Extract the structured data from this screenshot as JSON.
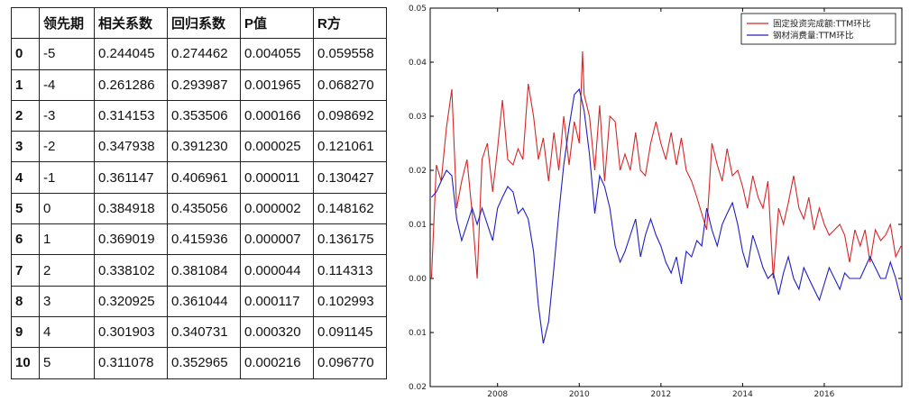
{
  "table": {
    "headers": [
      "",
      "领先期",
      "相关系数",
      "回归系数",
      "P值",
      "R方"
    ],
    "rows": [
      [
        "0",
        "-5",
        "0.244045",
        "0.274462",
        "0.004055",
        "0.059558"
      ],
      [
        "1",
        "-4",
        "0.261286",
        "0.293987",
        "0.001965",
        "0.068270"
      ],
      [
        "2",
        "-3",
        "0.314153",
        "0.353506",
        "0.000166",
        "0.098692"
      ],
      [
        "3",
        "-2",
        "0.347938",
        "0.391230",
        "0.000025",
        "0.121061"
      ],
      [
        "4",
        "-1",
        "0.361147",
        "0.406961",
        "0.000011",
        "0.130427"
      ],
      [
        "5",
        "0",
        "0.384918",
        "0.435056",
        "0.000002",
        "0.148162"
      ],
      [
        "6",
        "1",
        "0.369019",
        "0.415936",
        "0.000007",
        "0.136175"
      ],
      [
        "7",
        "2",
        "0.338102",
        "0.381084",
        "0.000044",
        "0.114313"
      ],
      [
        "8",
        "3",
        "0.320925",
        "0.361044",
        "0.000117",
        "0.102993"
      ],
      [
        "9",
        "4",
        "0.301903",
        "0.340731",
        "0.000320",
        "0.091145"
      ],
      [
        "10",
        "5",
        "0.311078",
        "0.352965",
        "0.000216",
        "0.096770"
      ]
    ]
  },
  "chart_data": {
    "type": "line",
    "title": "",
    "xlabel": "",
    "ylabel": "",
    "xlim": [
      2006.35,
      2017.9
    ],
    "ylim": [
      -0.02,
      0.05
    ],
    "y_ticks": [
      0.05,
      0.04,
      0.03,
      0.02,
      0.01,
      0.0,
      -0.01,
      -0.02
    ],
    "y_tick_labels": [
      "0.05",
      "0.04",
      "0.03",
      "0.02",
      "0.01",
      "0.00",
      "0.01",
      "0.02"
    ],
    "x_ticks": [
      2008,
      2010,
      2012,
      2014,
      2016
    ],
    "x_tick_labels": [
      "2008",
      "2010",
      "2012",
      "2014",
      "2016"
    ],
    "legend_position": "top-right",
    "grid": false,
    "series": [
      {
        "name": "固定投资完成额:TTM环比",
        "color": "#d62728",
        "points": [
          [
            2006.38,
            0.0
          ],
          [
            2006.5,
            0.021
          ],
          [
            2006.62,
            0.018
          ],
          [
            2006.75,
            0.028
          ],
          [
            2006.88,
            0.035
          ],
          [
            2007.0,
            0.013
          ],
          [
            2007.12,
            0.018
          ],
          [
            2007.25,
            0.022
          ],
          [
            2007.38,
            0.012
          ],
          [
            2007.5,
            0.0
          ],
          [
            2007.62,
            0.022
          ],
          [
            2007.75,
            0.025
          ],
          [
            2007.88,
            0.016
          ],
          [
            2008.0,
            0.024
          ],
          [
            2008.12,
            0.033
          ],
          [
            2008.25,
            0.022
          ],
          [
            2008.38,
            0.021
          ],
          [
            2008.5,
            0.024
          ],
          [
            2008.62,
            0.022
          ],
          [
            2008.75,
            0.036
          ],
          [
            2008.88,
            0.03
          ],
          [
            2009.0,
            0.022
          ],
          [
            2009.12,
            0.026
          ],
          [
            2009.25,
            0.018
          ],
          [
            2009.38,
            0.027
          ],
          [
            2009.5,
            0.02
          ],
          [
            2009.62,
            0.03
          ],
          [
            2009.75,
            0.021
          ],
          [
            2009.88,
            0.029
          ],
          [
            2010.0,
            0.025
          ],
          [
            2010.08,
            0.042
          ],
          [
            2010.12,
            0.034
          ],
          [
            2010.25,
            0.03
          ],
          [
            2010.38,
            0.02
          ],
          [
            2010.5,
            0.032
          ],
          [
            2010.62,
            0.018
          ],
          [
            2010.75,
            0.03
          ],
          [
            2010.88,
            0.029
          ],
          [
            2011.0,
            0.02
          ],
          [
            2011.12,
            0.023
          ],
          [
            2011.25,
            0.02
          ],
          [
            2011.38,
            0.027
          ],
          [
            2011.5,
            0.02
          ],
          [
            2011.62,
            0.019
          ],
          [
            2011.75,
            0.025
          ],
          [
            2011.88,
            0.029
          ],
          [
            2012.0,
            0.025
          ],
          [
            2012.12,
            0.022
          ],
          [
            2012.25,
            0.027
          ],
          [
            2012.38,
            0.021
          ],
          [
            2012.5,
            0.026
          ],
          [
            2012.62,
            0.02
          ],
          [
            2012.75,
            0.018
          ],
          [
            2012.88,
            0.015
          ],
          [
            2013.0,
            0.012
          ],
          [
            2013.12,
            0.009
          ],
          [
            2013.25,
            0.025
          ],
          [
            2013.38,
            0.021
          ],
          [
            2013.5,
            0.018
          ],
          [
            2013.62,
            0.024
          ],
          [
            2013.75,
            0.019
          ],
          [
            2013.88,
            0.02
          ],
          [
            2014.0,
            0.017
          ],
          [
            2014.12,
            0.013
          ],
          [
            2014.25,
            0.019
          ],
          [
            2014.38,
            0.015
          ],
          [
            2014.5,
            0.013
          ],
          [
            2014.62,
            0.018
          ],
          [
            2014.75,
            0.0
          ],
          [
            2014.88,
            0.013
          ],
          [
            2015.0,
            0.01
          ],
          [
            2015.12,
            0.014
          ],
          [
            2015.25,
            0.019
          ],
          [
            2015.38,
            0.013
          ],
          [
            2015.5,
            0.011
          ],
          [
            2015.62,
            0.015
          ],
          [
            2015.75,
            0.009
          ],
          [
            2015.88,
            0.013
          ],
          [
            2016.0,
            0.01
          ],
          [
            2016.12,
            0.008
          ],
          [
            2016.25,
            0.009
          ],
          [
            2016.38,
            0.01
          ],
          [
            2016.5,
            0.008
          ],
          [
            2016.62,
            0.003
          ],
          [
            2016.75,
            0.009
          ],
          [
            2016.88,
            0.006
          ],
          [
            2017.0,
            0.009
          ],
          [
            2017.12,
            0.003
          ],
          [
            2017.25,
            0.009
          ],
          [
            2017.38,
            0.007
          ],
          [
            2017.5,
            0.008
          ],
          [
            2017.62,
            0.01
          ],
          [
            2017.75,
            0.004
          ],
          [
            2017.88,
            0.006
          ]
        ]
      },
      {
        "name": "钢材消费量:TTM环比",
        "color": "#1f1fbf",
        "points": [
          [
            2006.38,
            0.015
          ],
          [
            2006.5,
            0.016
          ],
          [
            2006.62,
            0.018
          ],
          [
            2006.75,
            0.02
          ],
          [
            2006.88,
            0.019
          ],
          [
            2007.0,
            0.011
          ],
          [
            2007.12,
            0.007
          ],
          [
            2007.25,
            0.01
          ],
          [
            2007.38,
            0.013
          ],
          [
            2007.5,
            0.01
          ],
          [
            2007.62,
            0.013
          ],
          [
            2007.75,
            0.01
          ],
          [
            2007.88,
            0.007
          ],
          [
            2008.0,
            0.013
          ],
          [
            2008.12,
            0.015
          ],
          [
            2008.25,
            0.017
          ],
          [
            2008.38,
            0.016
          ],
          [
            2008.5,
            0.012
          ],
          [
            2008.62,
            0.013
          ],
          [
            2008.75,
            0.011
          ],
          [
            2008.88,
            0.005
          ],
          [
            2009.0,
            -0.005
          ],
          [
            2009.12,
            -0.012
          ],
          [
            2009.25,
            -0.008
          ],
          [
            2009.38,
            0.002
          ],
          [
            2009.5,
            0.012
          ],
          [
            2009.62,
            0.021
          ],
          [
            2009.75,
            0.028
          ],
          [
            2009.88,
            0.034
          ],
          [
            2010.0,
            0.035
          ],
          [
            2010.12,
            0.031
          ],
          [
            2010.25,
            0.023
          ],
          [
            2010.38,
            0.012
          ],
          [
            2010.5,
            0.019
          ],
          [
            2010.62,
            0.017
          ],
          [
            2010.75,
            0.013
          ],
          [
            2010.88,
            0.006
          ],
          [
            2011.0,
            0.003
          ],
          [
            2011.12,
            0.005
          ],
          [
            2011.25,
            0.008
          ],
          [
            2011.38,
            0.011
          ],
          [
            2011.5,
            0.004
          ],
          [
            2011.62,
            0.008
          ],
          [
            2011.75,
            0.011
          ],
          [
            2011.88,
            0.008
          ],
          [
            2012.0,
            0.006
          ],
          [
            2012.12,
            0.003
          ],
          [
            2012.25,
            0.001
          ],
          [
            2012.38,
            0.004
          ],
          [
            2012.5,
            -0.001
          ],
          [
            2012.62,
            0.005
          ],
          [
            2012.75,
            0.004
          ],
          [
            2012.88,
            0.007
          ],
          [
            2013.0,
            0.006
          ],
          [
            2013.12,
            0.013
          ],
          [
            2013.25,
            0.009
          ],
          [
            2013.38,
            0.006
          ],
          [
            2013.5,
            0.01
          ],
          [
            2013.62,
            0.012
          ],
          [
            2013.75,
            0.014
          ],
          [
            2013.88,
            0.01
          ],
          [
            2014.0,
            0.005
          ],
          [
            2014.12,
            0.002
          ],
          [
            2014.25,
            0.008
          ],
          [
            2014.38,
            0.005
          ],
          [
            2014.5,
            0.002
          ],
          [
            2014.62,
            0.0
          ],
          [
            2014.75,
            0.001
          ],
          [
            2014.88,
            -0.003
          ],
          [
            2015.0,
            0.001
          ],
          [
            2015.12,
            0.004
          ],
          [
            2015.25,
            0.0
          ],
          [
            2015.38,
            -0.002
          ],
          [
            2015.5,
            0.002
          ],
          [
            2015.62,
            0.0
          ],
          [
            2015.75,
            -0.002
          ],
          [
            2015.88,
            -0.004
          ],
          [
            2016.0,
            -0.001
          ],
          [
            2016.12,
            0.002
          ],
          [
            2016.25,
            0.0
          ],
          [
            2016.38,
            -0.002
          ],
          [
            2016.5,
            0.001
          ],
          [
            2016.62,
            0.0
          ],
          [
            2016.75,
            0.0
          ],
          [
            2016.88,
            0.0
          ],
          [
            2017.0,
            0.002
          ],
          [
            2017.12,
            0.004
          ],
          [
            2017.25,
            0.002
          ],
          [
            2017.38,
            0.0
          ],
          [
            2017.5,
            0.0
          ],
          [
            2017.62,
            0.003
          ],
          [
            2017.75,
            0.0
          ],
          [
            2017.88,
            -0.004
          ]
        ]
      }
    ]
  }
}
